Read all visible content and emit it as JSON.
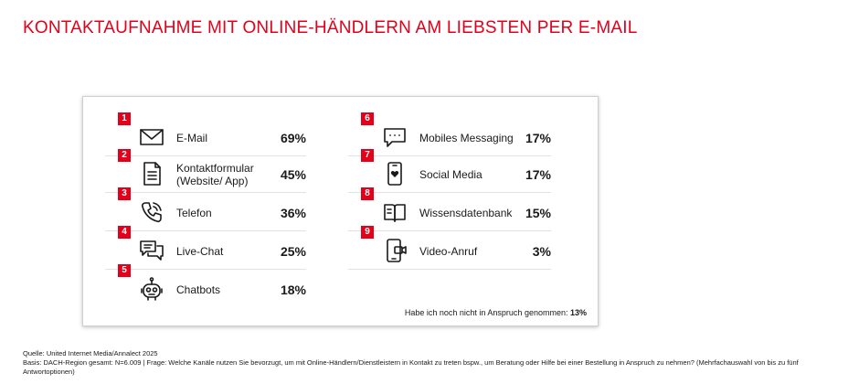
{
  "title": "KONTAKTAUFNAHME MIT ONLINE-HÄNDLERN AM LIEBSTEN PER E-MAIL",
  "chart_data": {
    "type": "table",
    "categories": [
      "E-Mail",
      "Kontaktformular (Website/ App)",
      "Telefon",
      "Live-Chat",
      "Chatbots",
      "Mobiles Messaging",
      "Social Media",
      "Wissensdatenbank",
      "Video-Anruf"
    ],
    "values": [
      69,
      45,
      36,
      25,
      18,
      17,
      17,
      15,
      3
    ],
    "items": [
      {
        "rank": "1",
        "label": "E-Mail",
        "value": "69%",
        "icon": "envelope-icon"
      },
      {
        "rank": "2",
        "label": "Kontaktformular\n(Website/ App)",
        "value": "45%",
        "icon": "document-icon"
      },
      {
        "rank": "3",
        "label": "Telefon",
        "value": "36%",
        "icon": "phone-icon"
      },
      {
        "rank": "4",
        "label": "Live-Chat",
        "value": "25%",
        "icon": "chat-bubbles-icon"
      },
      {
        "rank": "5",
        "label": "Chatbots",
        "value": "18%",
        "icon": "robot-icon"
      },
      {
        "rank": "6",
        "label": "Mobiles Messaging",
        "value": "17%",
        "icon": "message-bubble-icon"
      },
      {
        "rank": "7",
        "label": "Social Media",
        "value": "17%",
        "icon": "smartphone-heart-icon"
      },
      {
        "rank": "8",
        "label": "Wissensdatenbank",
        "value": "15%",
        "icon": "open-book-icon"
      },
      {
        "rank": "9",
        "label": "Video-Anruf",
        "value": "3%",
        "icon": "video-call-icon"
      }
    ],
    "footnote_label": "Habe ich noch nicht in Anspruch genommen:",
    "footnote_value": "13%"
  },
  "source": {
    "line1": "Quelle: United Internet Media/Annalect 2025",
    "line2": "Basis: DACH-Region gesamt: N=6.009 | Frage: Welche Kanäle nutzen Sie bevorzugt, um mit Online-Händlern/Dienstleistern in Kontakt zu treten bspw., um Beratung oder Hilfe bei einer Bestellung in Anspruch zu nehmen? (Mehrfachauswahl von bis zu fünf Antwortoptionen)"
  },
  "colors": {
    "accent": "#e2001a",
    "text": "#1a1a1a"
  }
}
